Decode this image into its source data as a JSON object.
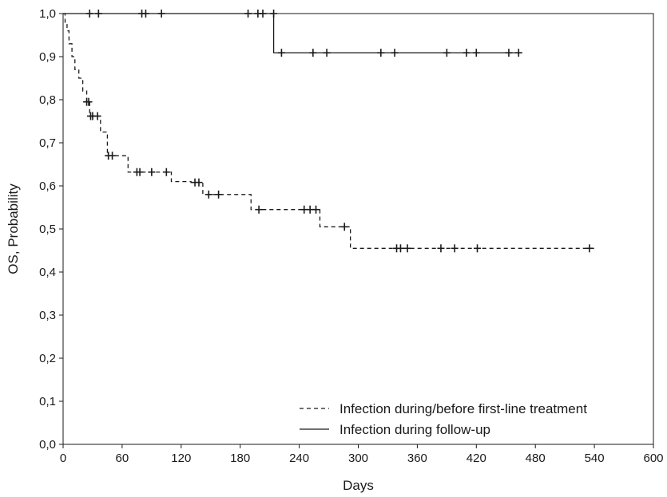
{
  "chart_data": {
    "type": "line",
    "title": "",
    "xlabel": "Days",
    "ylabel": "OS, Probability",
    "xlim": [
      0,
      600
    ],
    "ylim": [
      0.0,
      1.0
    ],
    "x_ticks": [
      "0",
      "60",
      "120",
      "180",
      "240",
      "300",
      "360",
      "420",
      "480",
      "540",
      "600"
    ],
    "y_ticks": [
      "0,0",
      "0,1",
      "0,2",
      "0,3",
      "0,4",
      "0,5",
      "0,6",
      "0,7",
      "0,8",
      "0,9",
      "1,0"
    ],
    "grid": false,
    "legend_position": "bottom-right",
    "series": [
      {
        "name": "Infection during/before first-line treatment",
        "line_style": "dashed",
        "color": "#1a1a1a",
        "steps": [
          [
            0,
            1.0
          ],
          [
            2,
            0.98
          ],
          [
            4,
            0.96
          ],
          [
            6,
            0.93
          ],
          [
            9,
            0.9
          ],
          [
            12,
            0.87
          ],
          [
            16,
            0.85
          ],
          [
            20,
            0.82
          ],
          [
            24,
            0.795
          ],
          [
            27,
            0.762
          ],
          [
            38,
            0.725
          ],
          [
            45,
            0.67
          ],
          [
            66,
            0.632
          ],
          [
            110,
            0.61
          ],
          [
            130,
            0.608
          ],
          [
            142,
            0.58
          ],
          [
            191,
            0.545
          ],
          [
            261,
            0.505
          ],
          [
            292,
            0.455
          ],
          [
            540,
            0.455
          ]
        ],
        "censored": [
          [
            24,
            0.795
          ],
          [
            26,
            0.795
          ],
          [
            28,
            0.762
          ],
          [
            30,
            0.762
          ],
          [
            35,
            0.762
          ],
          [
            46,
            0.67
          ],
          [
            50,
            0.67
          ],
          [
            75,
            0.632
          ],
          [
            78,
            0.632
          ],
          [
            90,
            0.632
          ],
          [
            105,
            0.632
          ],
          [
            134,
            0.608
          ],
          [
            138,
            0.608
          ],
          [
            148,
            0.58
          ],
          [
            158,
            0.58
          ],
          [
            199,
            0.545
          ],
          [
            245,
            0.545
          ],
          [
            251,
            0.545
          ],
          [
            257,
            0.545
          ],
          [
            286,
            0.505
          ],
          [
            339,
            0.455
          ],
          [
            343,
            0.455
          ],
          [
            350,
            0.455
          ],
          [
            384,
            0.455
          ],
          [
            398,
            0.455
          ],
          [
            421,
            0.455
          ],
          [
            535,
            0.455
          ]
        ]
      },
      {
        "name": "Infection during follow-up",
        "line_style": "solid",
        "color": "#1a1a1a",
        "steps": [
          [
            0,
            1.0
          ],
          [
            214,
            1.0
          ],
          [
            214,
            0.909
          ],
          [
            463,
            0.909
          ]
        ],
        "censored": [
          [
            27,
            1.0
          ],
          [
            36,
            1.0
          ],
          [
            80,
            1.0
          ],
          [
            84,
            1.0
          ],
          [
            100,
            1.0
          ],
          [
            188,
            1.0
          ],
          [
            198,
            1.0
          ],
          [
            203,
            1.0
          ],
          [
            214,
            1.0
          ],
          [
            222,
            0.909
          ],
          [
            254,
            0.909
          ],
          [
            268,
            0.909
          ],
          [
            323,
            0.909
          ],
          [
            337,
            0.909
          ],
          [
            390,
            0.909
          ],
          [
            410,
            0.909
          ],
          [
            420,
            0.909
          ],
          [
            453,
            0.909
          ],
          [
            463,
            0.909
          ]
        ]
      }
    ]
  }
}
